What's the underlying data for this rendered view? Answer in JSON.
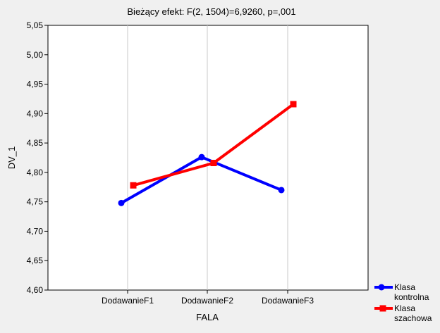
{
  "chart_data": {
    "type": "line",
    "title": "Bieżący efekt: F(2, 1504)=6,9260, p=,001",
    "xlabel": "FALA",
    "ylabel": "DV_1",
    "categories": [
      "DodawanieF1",
      "DodawanieF2",
      "DodawanieF3"
    ],
    "ylim": [
      4.6,
      5.05
    ],
    "yticks": [
      "4,60",
      "4,65",
      "4,70",
      "4,75",
      "4,80",
      "4,85",
      "4,90",
      "4,95",
      "5,00",
      "5,05"
    ],
    "grid": "vertical",
    "legend_position": "right-bottom",
    "series": [
      {
        "name": "Klasa kontrolna",
        "values": [
          4.748,
          4.826,
          4.77
        ],
        "color": "#0000ff",
        "marker": "circle"
      },
      {
        "name": "Klasa szachowa",
        "values": [
          4.778,
          4.816,
          4.916
        ],
        "color": "#ff0000",
        "marker": "square"
      }
    ]
  }
}
